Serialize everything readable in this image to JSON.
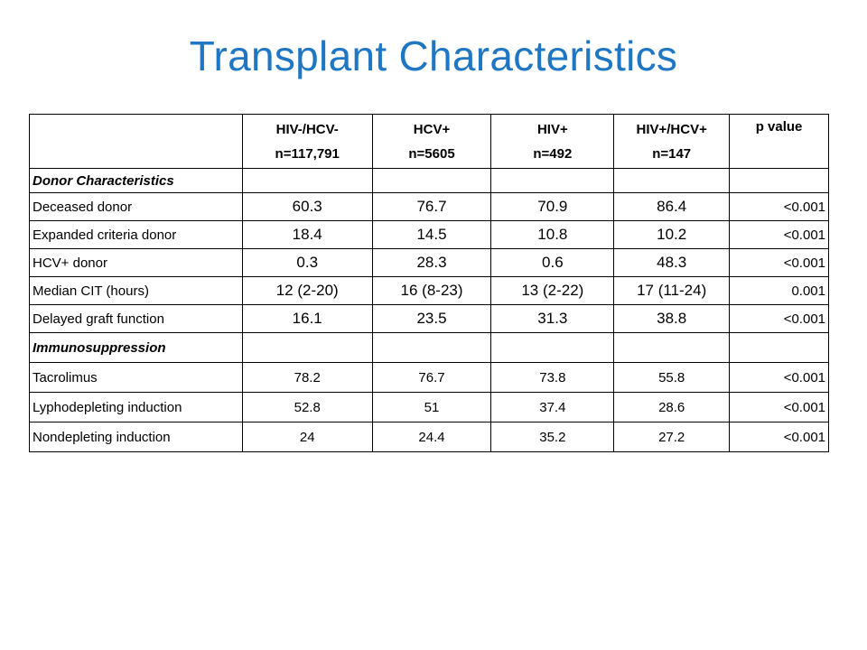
{
  "title": "Transplant Characteristics",
  "table": {
    "columns": [
      {
        "line1": "HIV-/HCV-",
        "line2": "n=117,791"
      },
      {
        "line1": "HCV+",
        "line2": "n=5605"
      },
      {
        "line1": "HIV+",
        "line2": "n=492"
      },
      {
        "line1": "HIV+/HCV+",
        "line2": "n=147"
      },
      {
        "line1": "p value",
        "line2": ""
      }
    ],
    "sections": [
      {
        "label": "Donor Characteristics",
        "rows": [
          {
            "label": "Deceased donor",
            "values": [
              "60.3",
              "76.7",
              "70.9",
              "86.4"
            ],
            "p": "<0.001"
          },
          {
            "label": "Expanded criteria donor",
            "values": [
              "18.4",
              "14.5",
              "10.8",
              "10.2"
            ],
            "p": "<0.001"
          },
          {
            "label": "HCV+ donor",
            "values": [
              "0.3",
              "28.3",
              "0.6",
              "48.3"
            ],
            "p": "<0.001"
          },
          {
            "label": "Median CIT (hours)",
            "values": [
              "12 (2-20)",
              "16 (8-23)",
              "13 (2-22)",
              "17 (11-24)"
            ],
            "p": "0.001"
          },
          {
            "label": "Delayed graft function",
            "values": [
              "16.1",
              "23.5",
              "31.3",
              "38.8"
            ],
            "p": "<0.001"
          }
        ]
      },
      {
        "label": "Immunosuppression",
        "rows": [
          {
            "label": "Tacrolimus",
            "values": [
              "78.2",
              "76.7",
              "73.8",
              "55.8"
            ],
            "p": "<0.001"
          },
          {
            "label": "Lyphodepleting induction",
            "values": [
              "52.8",
              "51",
              "37.4",
              "28.6"
            ],
            "p": "<0.001"
          },
          {
            "label": "Nondepleting induction",
            "values": [
              "24",
              "24.4",
              "35.2",
              "27.2"
            ],
            "p": "<0.001"
          }
        ]
      }
    ]
  }
}
